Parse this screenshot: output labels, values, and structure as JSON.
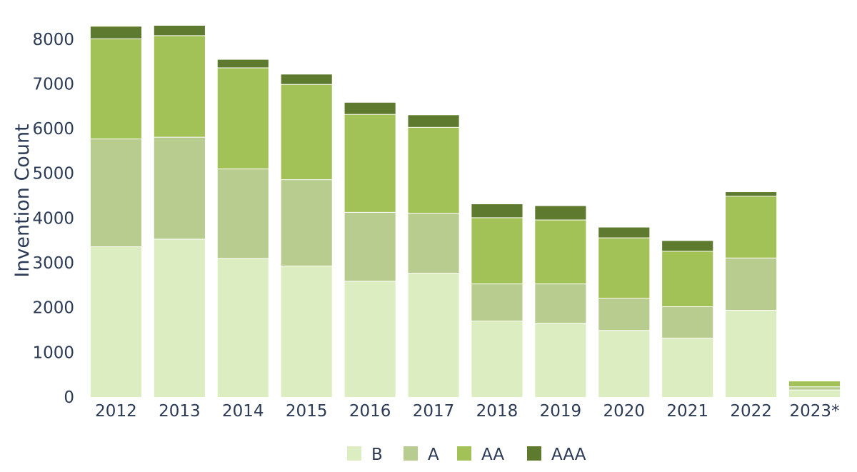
{
  "chart_data": {
    "type": "bar",
    "stacked": true,
    "title": "",
    "xlabel": "",
    "ylabel": "Invention Count",
    "ylim": [
      0,
      8300
    ],
    "yticks": [
      0,
      1000,
      2000,
      3000,
      4000,
      5000,
      6000,
      7000,
      8000
    ],
    "grid": false,
    "legend_position": "bottom-center",
    "categories": [
      "2012",
      "2013",
      "2014",
      "2015",
      "2016",
      "2017",
      "2018",
      "2019",
      "2020",
      "2021",
      "2022",
      "2023*"
    ],
    "series": [
      {
        "name": "B",
        "color": "#dcedc1",
        "values": [
          3350,
          3520,
          3090,
          2920,
          2580,
          2760,
          1690,
          1640,
          1480,
          1310,
          1930,
          150
        ]
      },
      {
        "name": "A",
        "color": "#b7cc8e",
        "values": [
          2410,
          2280,
          2000,
          1930,
          1540,
          1340,
          830,
          880,
          720,
          700,
          1170,
          70
        ]
      },
      {
        "name": "AA",
        "color": "#a2c257",
        "values": [
          2240,
          2270,
          2260,
          2130,
          2190,
          1920,
          1480,
          1430,
          1350,
          1240,
          1380,
          130
        ]
      },
      {
        "name": "AAA",
        "color": "#5e7a2e",
        "values": [
          280,
          230,
          190,
          230,
          270,
          280,
          310,
          320,
          240,
          240,
          100,
          0
        ]
      }
    ]
  }
}
